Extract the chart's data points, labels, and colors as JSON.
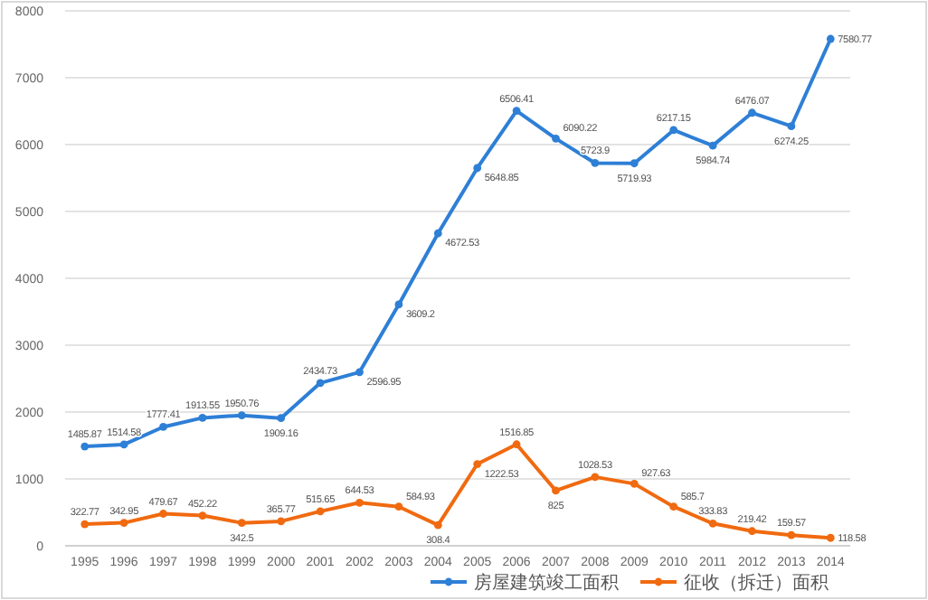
{
  "chart_data": {
    "type": "line",
    "categories": [
      "1995",
      "1996",
      "1997",
      "1998",
      "1999",
      "2000",
      "2001",
      "2002",
      "2003",
      "2004",
      "2005",
      "2006",
      "2007",
      "2008",
      "2009",
      "2010",
      "2011",
      "2012",
      "2013",
      "2014"
    ],
    "series": [
      {
        "name": "房屋建筑竣工面积",
        "color": "#2e7fd6",
        "values": [
          1485.87,
          1514.58,
          1777.41,
          1913.55,
          1950.76,
          1909.16,
          2434.73,
          2596.95,
          3609.2,
          4672.53,
          5648.85,
          6506.41,
          6090.22,
          5723.9,
          5719.93,
          6217.15,
          5984.74,
          6476.07,
          6274.25,
          7580.77
        ]
      },
      {
        "name": "征收（拆迁）面积",
        "color": "#f06a10",
        "values": [
          322.77,
          342.95,
          479.67,
          452.22,
          342.5,
          365.77,
          515.65,
          644.53,
          584.93,
          308.4,
          1222.53,
          1516.85,
          825,
          1028.53,
          927.63,
          585.7,
          333.83,
          219.42,
          159.57,
          118.58
        ]
      }
    ],
    "ylim": [
      0,
      8000
    ],
    "yticks": [
      0,
      1000,
      2000,
      3000,
      4000,
      5000,
      6000,
      7000,
      8000
    ],
    "grid": "y",
    "legend": "bottom right",
    "marker": "circle",
    "data_labels": true
  }
}
